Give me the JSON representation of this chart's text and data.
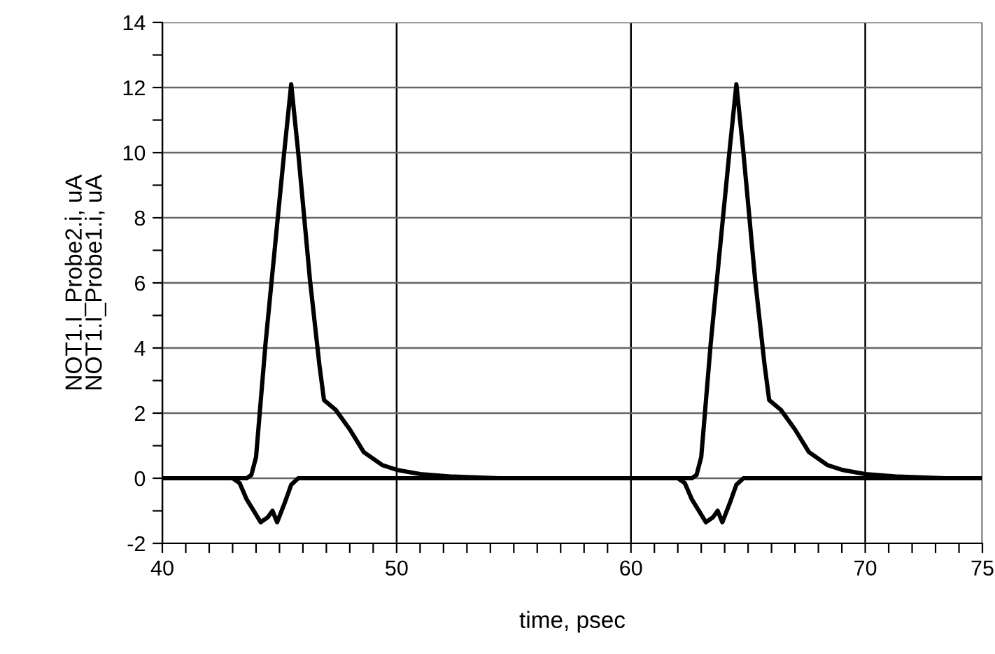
{
  "chart_data": {
    "type": "line",
    "xlabel": "time, psec",
    "ylabel": "NOT1.I_Probe2.i, uA\nNOT1.I_Probe1.i, uA",
    "series": [
      {
        "color": "#000000",
        "x": [
          40,
          43.6,
          43.8,
          44.0,
          44.4,
          44.9,
          45.2,
          45.5,
          45.8,
          46.3,
          46.7,
          46.9,
          47.4,
          48.0,
          48.6,
          49.4,
          50.0,
          51.0,
          52.4,
          54.4,
          62.6,
          62.8,
          63.0,
          63.4,
          63.9,
          64.2,
          64.5,
          64.8,
          65.3,
          65.7,
          65.9,
          66.4,
          67.0,
          67.6,
          68.4,
          69.0,
          70.0,
          71.4,
          73.4,
          75
        ],
        "values": [
          0,
          0,
          0.1,
          0.65,
          4.1,
          7.8,
          10.0,
          12.1,
          10.0,
          6.1,
          3.5,
          2.4,
          2.1,
          1.5,
          0.8,
          0.4,
          0.26,
          0.13,
          0.05,
          0,
          0,
          0.1,
          0.65,
          4.1,
          7.8,
          10.0,
          12.1,
          10.0,
          6.1,
          3.5,
          2.4,
          2.1,
          1.5,
          0.8,
          0.4,
          0.26,
          0.13,
          0.05,
          0,
          0
        ]
      },
      {
        "color": "#000000",
        "x": [
          40,
          43.0,
          43.3,
          43.6,
          44.2,
          44.5,
          44.7,
          44.9,
          45.2,
          45.5,
          45.8,
          62.0,
          62.3,
          62.6,
          63.2,
          63.5,
          63.7,
          63.9,
          64.2,
          64.5,
          64.8,
          75
        ],
        "values": [
          0,
          0,
          -0.15,
          -0.65,
          -1.35,
          -1.2,
          -1.0,
          -1.35,
          -0.8,
          -0.2,
          0,
          0,
          -0.15,
          -0.65,
          -1.35,
          -1.2,
          -1.0,
          -1.35,
          -0.8,
          -0.2,
          0,
          0
        ]
      }
    ],
    "xlim": [
      40,
      75
    ],
    "ylim": [
      -2,
      14
    ],
    "xticks": [
      40,
      {
        "value": 41,
        "label": null
      },
      {
        "value": 42,
        "label": null
      },
      {
        "value": 43,
        "label": null
      },
      {
        "value": 44,
        "label": null
      },
      {
        "value": 45,
        "label": null
      },
      {
        "value": 46,
        "label": null
      },
      {
        "value": 47,
        "label": null
      },
      {
        "value": 48,
        "label": null
      },
      {
        "value": 49,
        "label": null
      },
      50,
      {
        "value": 51,
        "label": null
      },
      {
        "value": 52,
        "label": null
      },
      {
        "value": 53,
        "label": null
      },
      {
        "value": 54,
        "label": null
      },
      {
        "value": 55,
        "label": null
      },
      {
        "value": 56,
        "label": null
      },
      {
        "value": 57,
        "label": null
      },
      {
        "value": 58,
        "label": null
      },
      {
        "value": 59,
        "label": null
      },
      60,
      {
        "value": 61,
        "label": null
      },
      {
        "value": 62,
        "label": null
      },
      {
        "value": 63,
        "label": null
      },
      {
        "value": 64,
        "label": null
      },
      {
        "value": 65,
        "label": null
      },
      {
        "value": 66,
        "label": null
      },
      {
        "value": 67,
        "label": null
      },
      {
        "value": 68,
        "label": null
      },
      {
        "value": 69,
        "label": null
      },
      70,
      {
        "value": 71,
        "label": null
      },
      {
        "value": 72,
        "label": null
      },
      {
        "value": 73,
        "label": null
      },
      {
        "value": 74,
        "label": null
      },
      75
    ],
    "yticks": [
      -2,
      {
        "value": -1,
        "label": null
      },
      0,
      {
        "value": 1,
        "label": null
      },
      2,
      {
        "value": 3,
        "label": null
      },
      4,
      {
        "value": 5,
        "label": null
      },
      6,
      {
        "value": 7,
        "label": null
      },
      8,
      {
        "value": 9,
        "label": null
      },
      10,
      {
        "value": 11,
        "label": null
      },
      12,
      {
        "value": 13,
        "label": null
      },
      14
    ],
    "grid": true,
    "marker": "none",
    "line_style": "solid"
  }
}
